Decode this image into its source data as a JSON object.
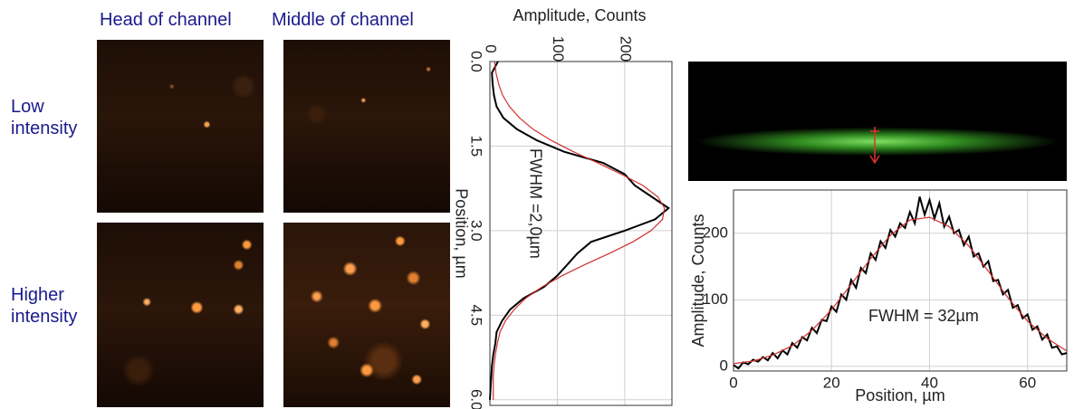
{
  "labels": {
    "columns": [
      "Head of channel",
      "Middle of channel"
    ],
    "rows": [
      "Low intensity",
      "Higher intensity"
    ]
  },
  "chart_data": [
    {
      "type": "line",
      "swap_axes": true,
      "xlabel": "Position, µm",
      "ylabel": "Amplitude, Counts",
      "annotation": "FWHM =2,0µm",
      "xlim": [
        0,
        6.1
      ],
      "ylim": [
        0,
        270
      ],
      "xticks": [
        {
          "value": 0,
          "label": "0.0"
        },
        1.5,
        {
          "value": 3,
          "label": "3.0"
        },
        4.5,
        {
          "value": 6,
          "label": "6.0"
        }
      ],
      "yticks": [
        0,
        100,
        200
      ],
      "grid": true,
      "series": [
        {
          "color": "#000000",
          "x": [
            0,
            0.2,
            0.4,
            0.6,
            0.8,
            1.0,
            1.2,
            1.4,
            1.6,
            1.8,
            2.0,
            2.2,
            2.4,
            2.6,
            2.8,
            3.0,
            3.2,
            3.4,
            3.6,
            3.8,
            4.0,
            4.2,
            4.4,
            4.6,
            4.8,
            5.0,
            5.2,
            5.4,
            5.6,
            5.8,
            6.0
          ],
          "values": [
            12,
            3,
            4,
            6,
            10,
            20,
            40,
            70,
            110,
            168,
            200,
            215,
            240,
            265,
            245,
            200,
            150,
            130,
            115,
            100,
            80,
            50,
            30,
            18,
            10,
            8,
            5,
            3,
            2,
            1,
            0
          ]
        },
        {
          "color": "#d03030",
          "x": [
            0,
            0.2,
            0.4,
            0.6,
            0.8,
            1.0,
            1.2,
            1.4,
            1.6,
            1.8,
            2.0,
            2.2,
            2.4,
            2.6,
            2.8,
            3.0,
            3.2,
            3.4,
            3.6,
            3.8,
            4.0,
            4.2,
            4.4,
            4.6,
            4.8,
            5.0,
            5.2,
            5.4,
            5.6,
            5.8,
            6.0
          ],
          "values": [
            7,
            9,
            13,
            19,
            29,
            44,
            64,
            91,
            124,
            160,
            195,
            227,
            249,
            259,
            256,
            239,
            212,
            178,
            141,
            107,
            77,
            53,
            36,
            23,
            15,
            11,
            8,
            6,
            5,
            5,
            5
          ]
        }
      ]
    },
    {
      "type": "line",
      "swap_axes": false,
      "xlabel": "Position, µm",
      "ylabel": "Amplitude, Counts",
      "annotation": "FWHM = 32µm",
      "xlim": [
        0,
        68
      ],
      "ylim": [
        -7,
        265
      ],
      "xticks": [
        0,
        20,
        40,
        60
      ],
      "yticks": [
        0,
        100,
        200
      ],
      "grid": true,
      "series": [
        {
          "color": "#000000",
          "x": [
            0,
            1,
            2,
            3,
            4,
            5,
            6,
            7,
            8,
            9,
            10,
            11,
            12,
            13,
            14,
            15,
            16,
            17,
            18,
            19,
            20,
            21,
            22,
            23,
            24,
            25,
            26,
            27,
            28,
            29,
            30,
            31,
            32,
            33,
            34,
            35,
            36,
            37,
            38,
            39,
            40,
            41,
            42,
            43,
            44,
            45,
            46,
            47,
            48,
            49,
            50,
            51,
            52,
            53,
            54,
            55,
            56,
            57,
            58,
            59,
            60,
            61,
            62,
            63,
            64,
            65,
            66,
            67,
            68
          ],
          "values": [
            2,
            -3,
            6,
            3,
            10,
            7,
            14,
            9,
            20,
            12,
            24,
            18,
            35,
            28,
            44,
            39,
            58,
            50,
            70,
            68,
            90,
            82,
            108,
            100,
            130,
            118,
            148,
            140,
            170,
            160,
            188,
            178,
            205,
            195,
            215,
            208,
            232,
            215,
            255,
            228,
            250,
            222,
            245,
            210,
            225,
            200,
            205,
            182,
            195,
            165,
            170,
            150,
            158,
            128,
            130,
            108,
            115,
            88,
            92,
            72,
            78,
            55,
            60,
            40,
            48,
            28,
            30,
            18,
            20
          ]
        },
        {
          "color": "#d03030",
          "x": [
            0,
            4,
            8,
            12,
            16,
            20,
            24,
            28,
            32,
            36,
            40,
            44,
            48,
            52,
            56,
            60,
            64,
            68
          ],
          "values": [
            4,
            8,
            17,
            31,
            54,
            85,
            123,
            162,
            197,
            220,
            224,
            210,
            181,
            143,
            103,
            68,
            42,
            23
          ]
        }
      ]
    }
  ]
}
